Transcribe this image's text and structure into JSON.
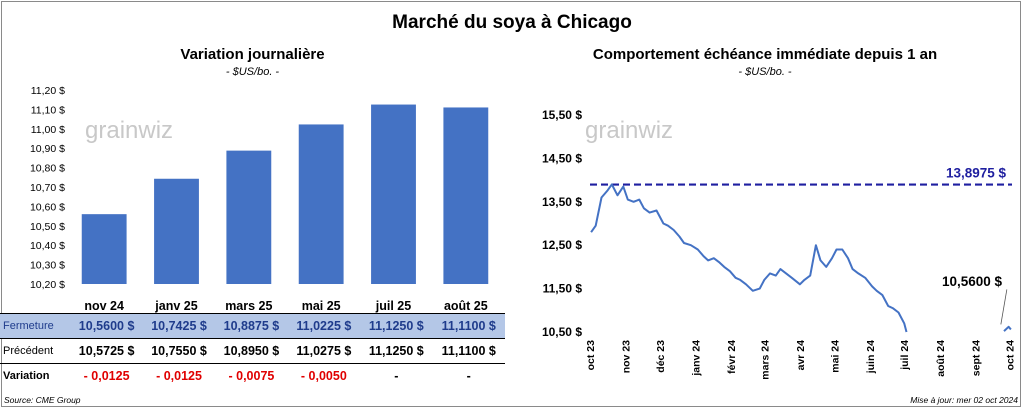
{
  "title": "Marché du soya à Chicago",
  "left_panel": {
    "title": "Variation journalière",
    "unit": "- $US/bo. -"
  },
  "right_panel": {
    "title": "Comportement échéance immédiate depuis 1 an",
    "unit": "- $US/bo. -"
  },
  "watermark": "grainwiz",
  "table": {
    "rows": [
      {
        "label": "Fermeture",
        "values": [
          "10,5600 $",
          "10,7425 $",
          "10,8875 $",
          "11,0225 $",
          "11,1250 $",
          "11,1100 $"
        ]
      },
      {
        "label": "Précédent",
        "values": [
          "10,5725 $",
          "10,7550 $",
          "10,8950 $",
          "11,0275 $",
          "11,1250 $",
          "11,1100 $"
        ]
      },
      {
        "label": "Variation",
        "values": [
          "- 0,0125",
          "- 0,0125",
          "- 0,0075",
          "- 0,0050",
          "-",
          "-"
        ]
      }
    ]
  },
  "source": "Source: CME Group",
  "updated": "Mise à jour: mer 02 oct 2024",
  "colors": {
    "bar": "#4472c4",
    "line": "#4472c4",
    "reference": "#1f1fa0",
    "table_highlight": "#b4c7e7",
    "negative": "#e00000"
  },
  "chart_data": [
    {
      "type": "bar",
      "title": "Variation journalière",
      "ylabel": "- $US/bo. -",
      "categories": [
        "nov 24",
        "janv 25",
        "mars 25",
        "mai 25",
        "juil 25",
        "août 25"
      ],
      "values": [
        10.56,
        10.7425,
        10.8875,
        11.0225,
        11.125,
        11.11
      ],
      "ylim": [
        10.2,
        11.2
      ],
      "yticks": [
        10.2,
        10.3,
        10.4,
        10.5,
        10.6,
        10.7,
        10.8,
        10.9,
        11.0,
        11.1,
        11.2
      ],
      "ytick_labels": [
        "10,20 $",
        "10,30 $",
        "10,40 $",
        "10,50 $",
        "10,60 $",
        "10,70 $",
        "10,80 $",
        "10,90 $",
        "11,00 $",
        "11,10 $",
        "11,20 $"
      ],
      "grid": false
    },
    {
      "type": "line",
      "title": "Comportement échéance immédiate depuis 1 an",
      "ylabel": "- $US/bo. -",
      "ylim": [
        10.5,
        15.5
      ],
      "yticks": [
        10.5,
        11.5,
        12.5,
        13.5,
        14.5,
        15.5
      ],
      "ytick_labels": [
        "10,50 $",
        "11,50 $",
        "12,50 $",
        "13,50 $",
        "14,50 $",
        "15,50 $"
      ],
      "xticks": [
        "oct 23",
        "nov 23",
        "déc 23",
        "janv 24",
        "févr 24",
        "mars 24",
        "avr 24",
        "mai 24",
        "juin 24",
        "juil 24",
        "août 24",
        "sept 24",
        "oct 24"
      ],
      "x": [
        "2023-10-02",
        "2023-10-06",
        "2023-10-11",
        "2023-10-16",
        "2023-10-20",
        "2023-10-25",
        "2023-10-30",
        "2023-11-03",
        "2023-11-08",
        "2023-11-13",
        "2023-11-17",
        "2023-11-22",
        "2023-11-28",
        "2023-12-04",
        "2023-12-08",
        "2023-12-13",
        "2023-12-18",
        "2023-12-22",
        "2023-12-28",
        "2024-01-03",
        "2024-01-08",
        "2024-01-12",
        "2024-01-17",
        "2024-01-22",
        "2024-01-26",
        "2024-01-31",
        "2024-02-05",
        "2024-02-09",
        "2024-02-14",
        "2024-02-20",
        "2024-02-26",
        "2024-03-01",
        "2024-03-06",
        "2024-03-11",
        "2024-03-15",
        "2024-03-20",
        "2024-03-25",
        "2024-04-01",
        "2024-04-05",
        "2024-04-10",
        "2024-04-15",
        "2024-04-19",
        "2024-04-24",
        "2024-04-29",
        "2024-05-03",
        "2024-05-08",
        "2024-05-13",
        "2024-05-17",
        "2024-05-22",
        "2024-05-28",
        "2024-06-03",
        "2024-06-07",
        "2024-06-12",
        "2024-06-17",
        "2024-06-21",
        "2024-06-26",
        "2024-07-01",
        "2024-07-03",
        "2024-09-26",
        "2024-09-30",
        "2024-10-02"
      ],
      "series": [
        {
          "values": [
            12.8,
            12.95,
            13.6,
            13.75,
            13.9,
            13.65,
            13.85,
            13.55,
            13.5,
            13.55,
            13.35,
            13.25,
            13.3,
            13.0,
            12.95,
            12.85,
            12.7,
            12.55,
            12.5,
            12.4,
            12.25,
            12.15,
            12.2,
            12.1,
            12.0,
            11.9,
            11.75,
            11.7,
            11.6,
            11.45,
            11.5,
            11.7,
            11.85,
            11.8,
            11.95,
            11.85,
            11.75,
            11.6,
            11.7,
            11.8,
            12.5,
            12.15,
            12.0,
            12.2,
            12.4,
            12.4,
            12.2,
            11.95,
            11.85,
            11.75,
            11.55,
            11.45,
            11.35,
            11.1,
            11.05,
            10.95,
            10.7,
            10.5,
            10.52,
            10.62,
            10.56
          ]
        }
      ],
      "reference_line": {
        "value": 13.8975,
        "label": "13,8975 $"
      },
      "last_value_label": "10,5600 $",
      "grid": false
    }
  ]
}
